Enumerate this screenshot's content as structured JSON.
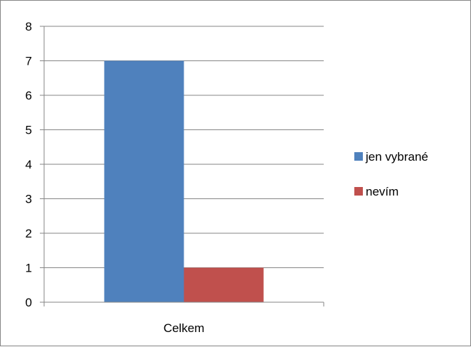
{
  "chart_data": {
    "type": "bar",
    "categories": [
      "Celkem"
    ],
    "series": [
      {
        "name": "jen vybrané",
        "values": [
          7
        ],
        "color": "#4F81BD"
      },
      {
        "name": "nevím",
        "values": [
          1
        ],
        "color": "#C0504D"
      }
    ],
    "ylim": [
      0,
      8
    ],
    "yticks": [
      0,
      1,
      2,
      3,
      4,
      5,
      6,
      7,
      8
    ],
    "grid": true,
    "legend": "right"
  }
}
